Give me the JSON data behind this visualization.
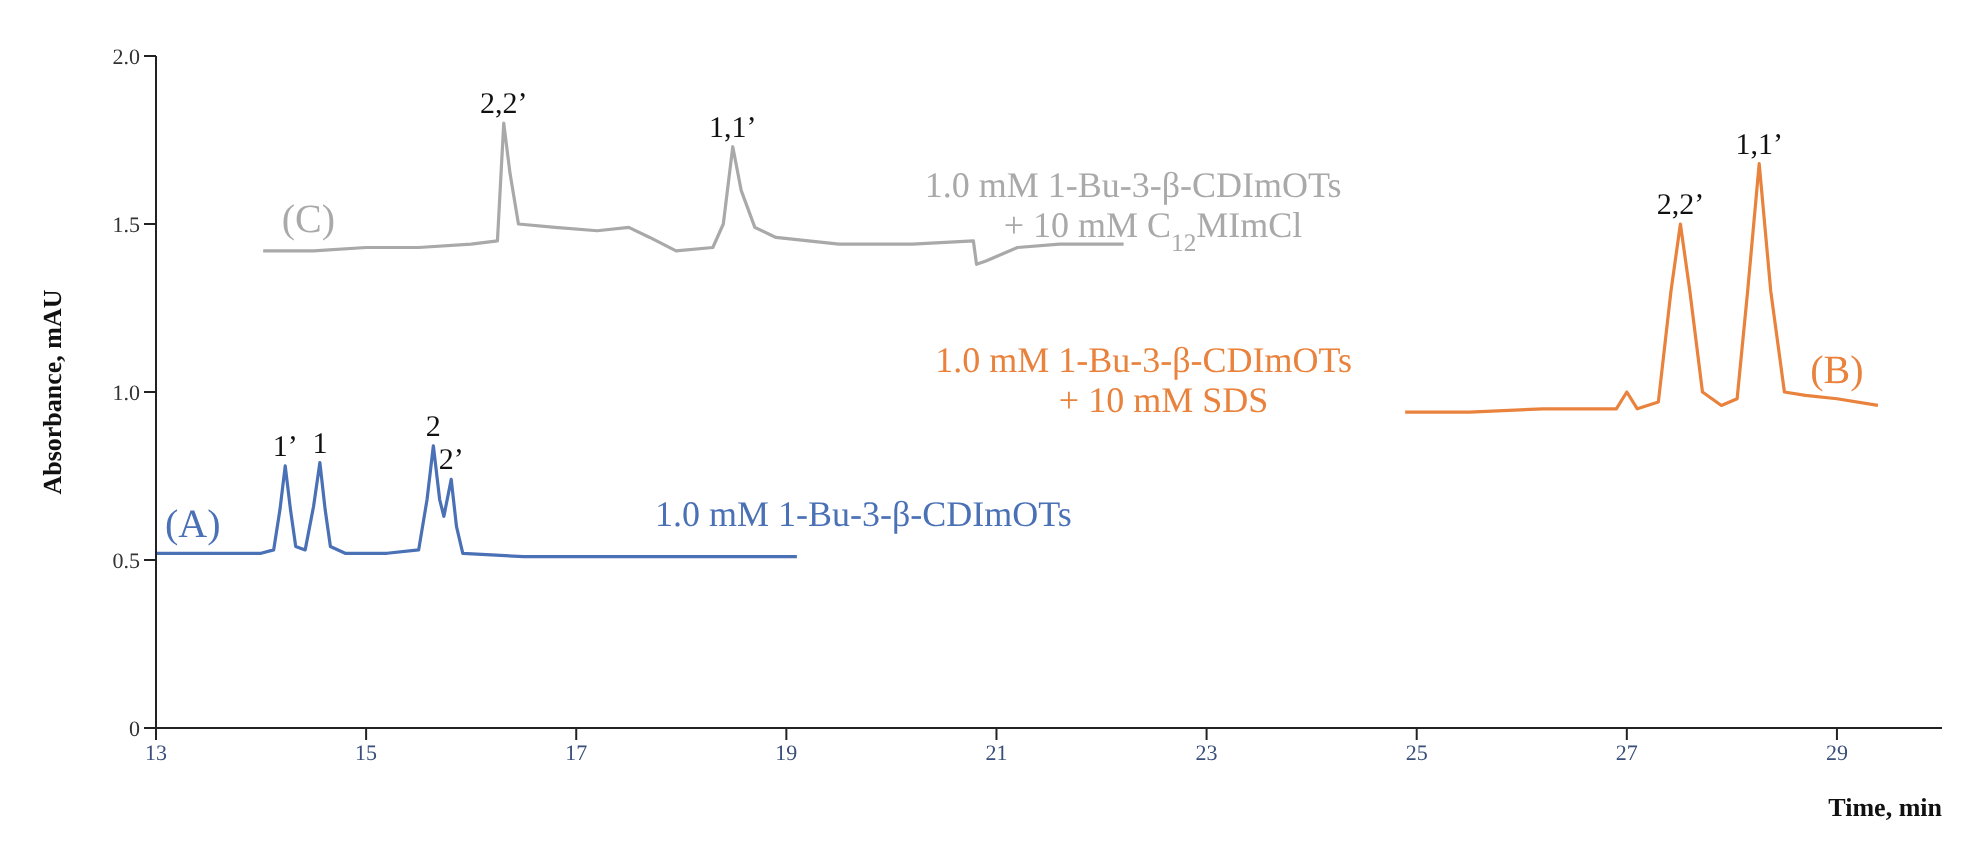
{
  "chart_data": {
    "type": "line",
    "xlabel": "Time, min",
    "ylabel": "Absorbance, mAU",
    "xlim": [
      13,
      30
    ],
    "xticks": [
      13,
      15,
      17,
      19,
      21,
      23,
      25,
      27,
      29
    ],
    "ylim": [
      0,
      2
    ],
    "yticks": [
      0,
      0.5,
      {
        "value": 1,
        "label": "1.0"
      },
      1.5,
      {
        "value": 2,
        "label": "2.0"
      }
    ],
    "marker": "none",
    "line_style": "solid",
    "series": [
      {
        "name": "1.0 mM 1-Bu-3-β-CDImOTs",
        "color": "#4a70b5",
        "x": [
          13,
          13.5,
          14.0,
          14.12,
          14.18,
          14.23,
          14.28,
          14.33,
          14.42,
          14.5,
          14.56,
          14.61,
          14.66,
          14.8,
          15.2,
          15.5,
          15.58,
          15.64,
          15.7,
          15.74,
          15.81,
          15.86,
          15.92,
          16.5,
          17.5,
          18.5,
          19.1
        ],
        "values": [
          0.52,
          0.52,
          0.52,
          0.53,
          0.65,
          0.78,
          0.65,
          0.54,
          0.53,
          0.66,
          0.79,
          0.65,
          0.54,
          0.52,
          0.52,
          0.53,
          0.68,
          0.84,
          0.68,
          0.63,
          0.74,
          0.6,
          0.52,
          0.51,
          0.51,
          0.51,
          0.51
        ]
      },
      {
        "name": "1.0 mM 1-Bu-3-β-CDImOTs\n+ 10 mM C$_{12}$MImCl",
        "color": "#a9a9a9",
        "x": [
          14.02,
          14.5,
          15,
          15.5,
          16,
          16.25,
          16.31,
          16.37,
          16.45,
          16.8,
          17.2,
          17.5,
          17.7,
          17.95,
          18.3,
          18.4,
          18.49,
          18.57,
          18.7,
          18.9,
          19.5,
          20.2,
          20.78,
          20.81,
          20.9,
          21.2,
          21.6,
          22.21
        ],
        "values": [
          1.42,
          1.42,
          1.43,
          1.43,
          1.44,
          1.45,
          1.8,
          1.65,
          1.5,
          1.49,
          1.48,
          1.49,
          1.46,
          1.42,
          1.43,
          1.5,
          1.73,
          1.6,
          1.49,
          1.46,
          1.44,
          1.44,
          1.45,
          1.38,
          1.39,
          1.43,
          1.44,
          1.44
        ]
      },
      {
        "name": "1.0 mM 1-Bu-3-β-CDImOTs\n+ 10 mM SDS",
        "color": "#e9823c",
        "x": [
          24.89,
          25.5,
          26.2,
          26.9,
          27.0,
          27.1,
          27.3,
          27.42,
          27.51,
          27.6,
          27.72,
          27.9,
          28.05,
          28.15,
          28.26,
          28.37,
          28.5,
          28.7,
          29.0,
          29.39
        ],
        "values": [
          0.94,
          0.94,
          0.95,
          0.95,
          1.0,
          0.95,
          0.97,
          1.3,
          1.5,
          1.3,
          1.0,
          0.96,
          0.98,
          1.3,
          1.68,
          1.3,
          1.0,
          0.99,
          0.98,
          0.96
        ]
      }
    ],
    "annotations": [
      {
        "text": "1’",
        "x": 14.23,
        "y": 0.78
      },
      {
        "text": "1",
        "x": 14.56,
        "y": 0.79
      },
      {
        "text": "2",
        "x": 15.64,
        "y": 0.84
      },
      {
        "text": "2’",
        "x": 15.81,
        "y": 0.74
      },
      {
        "text": "2,2’",
        "x": 16.31,
        "y": 1.8
      },
      {
        "text": "1,1’",
        "x": 18.49,
        "y": 1.73
      },
      {
        "text": "2,2’",
        "x": 27.51,
        "y": 1.5
      },
      {
        "text": "1,1’",
        "x": 28.26,
        "y": 1.68
      },
      {
        "text": "(A)",
        "x": 13.35,
        "y": 0.52
      },
      {
        "text": "(C)",
        "x": 14.45,
        "y": 1.43
      },
      {
        "text": "(B)",
        "x": 29.0,
        "y": 0.98
      }
    ]
  }
}
